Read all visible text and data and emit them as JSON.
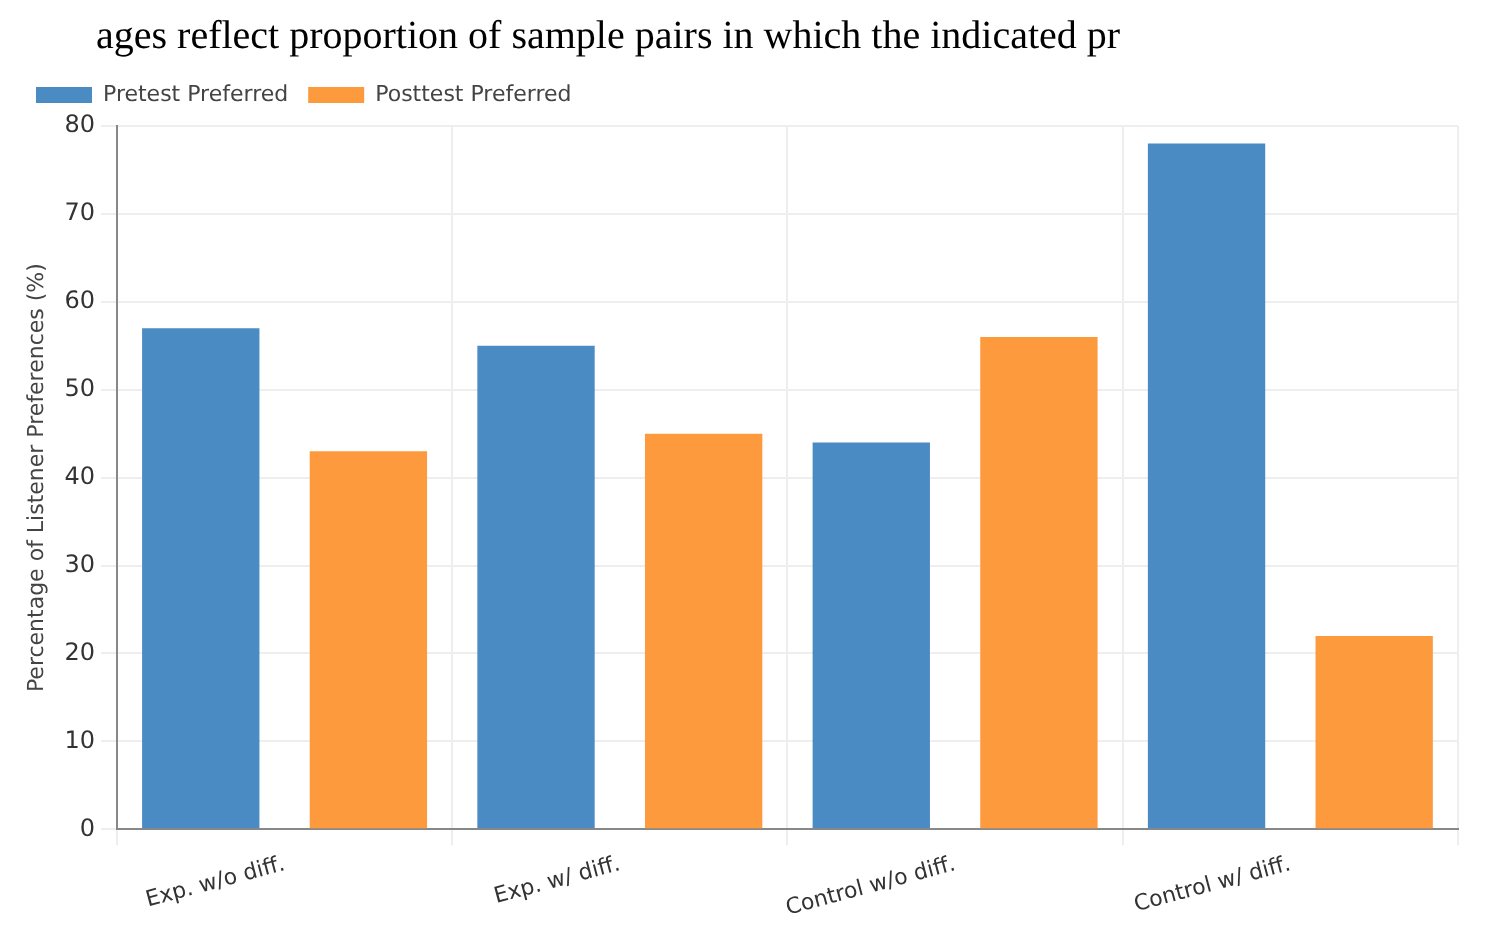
{
  "chart_data": {
    "type": "bar",
    "title": "ages reflect proportion of sample pairs in which the indicated pr",
    "ylabel": "Percentage of Listener Preferences (%)",
    "categories": [
      "Exp. w/o diff.",
      "Exp. w/ diff.",
      "Control w/o diff.",
      "Control w/ diff."
    ],
    "series": [
      {
        "name": "Pretest Preferred",
        "color": "#4b8bc3",
        "values": [
          57,
          55,
          44,
          78
        ]
      },
      {
        "name": "Posttest Preferred",
        "color": "#fd9a3d",
        "values": [
          43,
          45,
          56,
          22
        ]
      }
    ],
    "ylim": [
      0,
      80
    ],
    "yticks": [
      0,
      10,
      20,
      30,
      40,
      50,
      60,
      70,
      80
    ],
    "grid": true,
    "legend": "top left"
  }
}
